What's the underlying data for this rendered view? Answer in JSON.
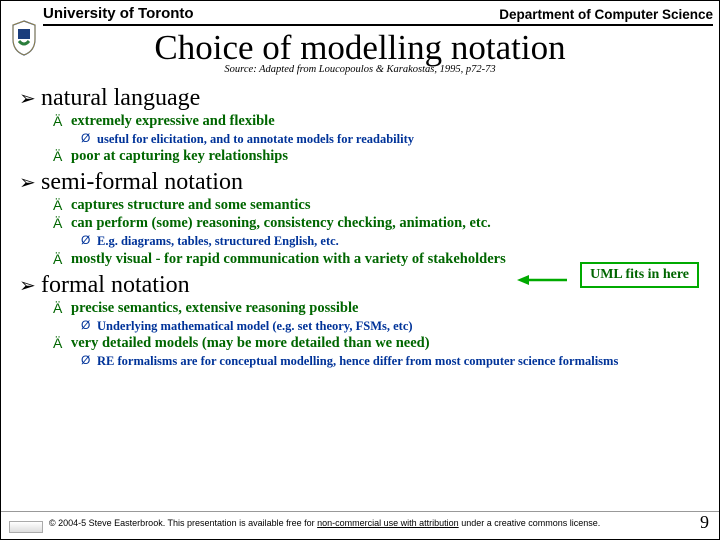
{
  "header": {
    "university": "University of Toronto",
    "department": "Department of Computer Science"
  },
  "title": "Choice of modelling notation",
  "source": "Source: Adapted from Loucopoulos & Karakostas, 1995, p72-73",
  "sections": [
    {
      "heading": "natural language",
      "items": [
        {
          "text": "extremely expressive and flexible",
          "sub": [
            "useful for elicitation, and to annotate models for readability"
          ]
        },
        {
          "text": "poor at capturing key relationships",
          "sub": []
        }
      ]
    },
    {
      "heading": "semi-formal notation",
      "items": [
        {
          "text": "captures structure and some semantics",
          "sub": []
        },
        {
          "text": "can perform (some) reasoning, consistency checking, animation, etc.",
          "sub": [
            "E.g. diagrams, tables, structured English, etc."
          ]
        },
        {
          "text": "mostly visual - for rapid communication with a variety of stakeholders",
          "sub": []
        }
      ]
    },
    {
      "heading": "formal notation",
      "items": [
        {
          "text": "precise semantics, extensive reasoning possible",
          "sub": [
            "Underlying mathematical model (e.g. set theory, FSMs, etc)"
          ]
        },
        {
          "text": "very detailed models (may be more detailed than we need)",
          "sub": [
            "RE formalisms are for conceptual modelling, hence differ from most computer science formalisms"
          ]
        }
      ]
    }
  ],
  "callout": "UML fits in here",
  "footer": {
    "text_pre": "© 2004-5 Steve Easterbrook. This presentation is available free for ",
    "text_underline": "non-commercial use with attribution",
    "text_post": " under a creative commons license.",
    "page": "9"
  },
  "colors": {
    "green": "#006600",
    "blue": "#003399",
    "arrow": "#00aa00"
  }
}
